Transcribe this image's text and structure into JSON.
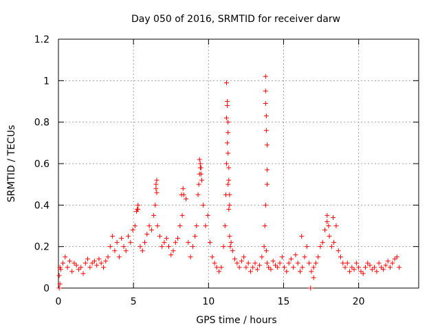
{
  "chart_data": {
    "type": "scatter",
    "title": "Day 050 of 2016, SRMTID for receiver darw",
    "xlabel": "GPS time / hours",
    "ylabel": "SRMTID / TECUs",
    "xlim": [
      0,
      24
    ],
    "ylim": [
      0,
      1.2
    ],
    "xticks": [
      0,
      5,
      10,
      15,
      20
    ],
    "yticks": [
      0,
      0.2,
      0.4,
      0.6,
      0.8,
      1,
      1.2
    ],
    "xtick_labels": [
      "0",
      "5",
      "10",
      "15",
      "20"
    ],
    "ytick_labels": [
      "0",
      "0.2",
      "0.4",
      "0.6",
      "0.8",
      "1",
      "1.2"
    ],
    "grid": true,
    "marker": "plus",
    "series": [
      {
        "name": "SRMTID",
        "color": "#ff0000",
        "x": [
          0.05,
          0.1,
          0.15,
          0.3,
          0.45,
          0.6,
          0.75,
          0.9,
          1.05,
          1.2,
          1.35,
          1.5,
          1.65,
          1.8,
          1.95,
          2.1,
          2.25,
          2.4,
          2.55,
          2.7,
          2.85,
          3.0,
          3.15,
          3.3,
          3.45,
          3.6,
          3.75,
          3.9,
          4.05,
          4.2,
          4.35,
          4.5,
          4.65,
          4.8,
          4.95,
          5.1,
          5.2,
          5.3,
          5.45,
          5.6,
          5.75,
          5.9,
          6.05,
          6.2,
          6.35,
          6.5,
          6.55,
          6.6,
          6.75,
          6.9,
          7.05,
          7.2,
          7.35,
          7.5,
          7.65,
          7.8,
          7.95,
          8.1,
          8.25,
          8.35,
          8.5,
          8.65,
          8.8,
          8.95,
          9.1,
          9.2,
          9.3,
          9.4,
          9.45,
          9.5,
          9.55,
          9.65,
          9.8,
          9.95,
          10.1,
          10.25,
          10.4,
          10.55,
          10.7,
          10.85,
          11.0,
          11.1,
          11.15,
          11.2,
          11.25,
          11.3,
          11.35,
          11.4,
          11.45,
          11.5,
          11.6,
          11.75,
          11.9,
          12.05,
          12.2,
          12.35,
          12.5,
          12.65,
          12.8,
          12.95,
          13.1,
          13.25,
          13.4,
          13.55,
          13.7,
          13.75,
          13.8,
          13.85,
          13.9,
          14.0,
          14.15,
          14.3,
          14.45,
          14.6,
          14.75,
          14.9,
          15.05,
          15.2,
          15.35,
          15.5,
          15.65,
          15.8,
          15.95,
          16.1,
          16.25,
          16.4,
          16.55,
          16.7,
          16.85,
          17.0,
          17.15,
          17.3,
          17.45,
          17.6,
          17.75,
          17.9,
          18.05,
          18.2,
          18.35,
          18.5,
          18.65,
          18.8,
          18.95,
          19.1,
          19.25,
          19.4,
          19.55,
          19.7,
          19.85,
          20.0,
          20.15,
          20.3,
          20.45,
          20.6,
          20.75,
          20.9,
          21.05,
          21.2,
          21.35,
          21.5,
          21.65,
          21.8,
          21.95,
          22.1,
          22.25,
          22.4,
          22.55,
          22.7,
          0.05,
          0.1,
          11.2,
          11.2,
          11.25,
          11.25,
          11.3,
          11.3,
          11.3,
          11.35,
          11.35,
          11.4,
          11.4,
          13.8,
          13.8,
          13.8,
          13.85,
          13.85,
          13.9,
          13.9,
          13.9,
          9.4,
          9.45,
          9.5,
          9.35,
          6.5,
          6.55,
          6.45,
          8.2,
          8.3,
          5.25,
          5.3,
          17.9,
          18.0,
          18.3,
          16.2,
          16.8,
          17.0
        ],
        "y": [
          0.06,
          0.1,
          0.09,
          0.12,
          0.15,
          0.1,
          0.13,
          0.08,
          0.12,
          0.11,
          0.09,
          0.1,
          0.07,
          0.12,
          0.14,
          0.1,
          0.12,
          0.13,
          0.11,
          0.14,
          0.12,
          0.1,
          0.13,
          0.15,
          0.2,
          0.25,
          0.18,
          0.22,
          0.15,
          0.24,
          0.2,
          0.18,
          0.25,
          0.22,
          0.28,
          0.3,
          0.37,
          0.38,
          0.2,
          0.18,
          0.22,
          0.26,
          0.3,
          0.28,
          0.35,
          0.48,
          0.52,
          0.3,
          0.25,
          0.2,
          0.22,
          0.24,
          0.2,
          0.16,
          0.18,
          0.22,
          0.24,
          0.3,
          0.35,
          0.45,
          0.43,
          0.22,
          0.15,
          0.2,
          0.25,
          0.3,
          0.45,
          0.55,
          0.6,
          0.58,
          0.52,
          0.4,
          0.3,
          0.35,
          0.22,
          0.15,
          0.12,
          0.1,
          0.08,
          0.1,
          0.2,
          0.3,
          0.45,
          0.6,
          0.7,
          0.5,
          0.38,
          0.25,
          0.2,
          0.22,
          0.18,
          0.14,
          0.12,
          0.1,
          0.13,
          0.15,
          0.1,
          0.12,
          0.08,
          0.1,
          0.12,
          0.09,
          0.11,
          0.15,
          0.2,
          0.3,
          0.4,
          0.18,
          0.12,
          0.1,
          0.09,
          0.13,
          0.11,
          0.1,
          0.12,
          0.15,
          0.1,
          0.08,
          0.12,
          0.14,
          0.1,
          0.16,
          0.12,
          0.08,
          0.1,
          0.15,
          0.2,
          0.12,
          0.08,
          0.1,
          0.12,
          0.15,
          0.2,
          0.22,
          0.28,
          0.32,
          0.25,
          0.2,
          0.22,
          0.3,
          0.18,
          0.15,
          0.12,
          0.1,
          0.12,
          0.08,
          0.1,
          0.09,
          0.12,
          0.1,
          0.08,
          0.07,
          0.1,
          0.12,
          0.11,
          0.09,
          0.1,
          0.08,
          0.12,
          0.1,
          0.09,
          0.11,
          0.13,
          0.1,
          0.12,
          0.14,
          0.15,
          0.1,
          0.0,
          0.02,
          0.82,
          0.99,
          0.88,
          0.9,
          0.8,
          0.75,
          0.65,
          0.58,
          0.52,
          0.45,
          0.4,
          1.02,
          0.95,
          0.89,
          0.83,
          0.76,
          0.69,
          0.57,
          0.5,
          0.62,
          0.58,
          0.55,
          0.5,
          0.5,
          0.46,
          0.4,
          0.45,
          0.48,
          0.38,
          0.4,
          0.35,
          0.3,
          0.34,
          0.25,
          0.0,
          0.05
        ]
      }
    ]
  }
}
